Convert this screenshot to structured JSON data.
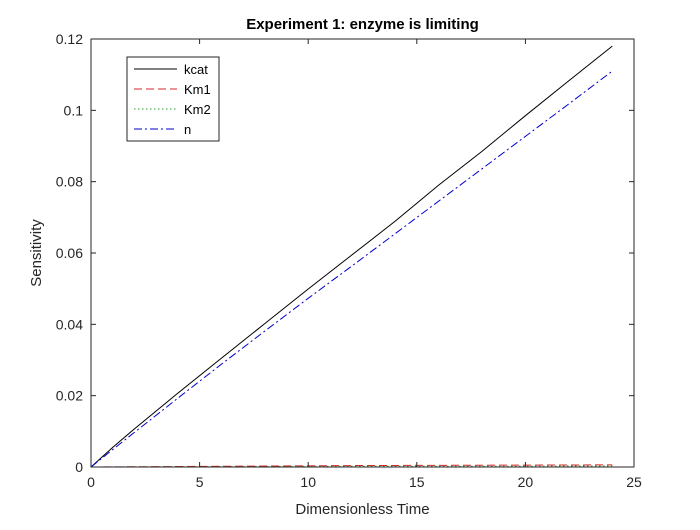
{
  "chart_data": {
    "type": "line",
    "title": "Experiment 1: enzyme is limiting",
    "xlabel": "Dimensionless Time",
    "ylabel": "Sensitivity",
    "xlim": [
      0,
      25
    ],
    "ylim": [
      0,
      0.12
    ],
    "xticks": [
      0,
      5,
      10,
      15,
      20,
      25
    ],
    "yticks": [
      0,
      0.02,
      0.04,
      0.06,
      0.08,
      0.1,
      0.12
    ],
    "xtick_labels": [
      "0",
      "5",
      "10",
      "15",
      "20",
      "25"
    ],
    "ytick_labels": [
      "0",
      "0.02",
      "0.04",
      "0.06",
      "0.08",
      "0.1",
      "0.12"
    ],
    "grid": false,
    "legend_position": "top-left",
    "series": [
      {
        "name": "kcat",
        "color": "#000000",
        "style": "solid",
        "x": [
          0,
          1,
          2,
          4,
          6,
          8,
          10,
          12,
          14,
          16,
          18,
          20,
          22,
          24
        ],
        "y": [
          0,
          0.0055,
          0.0107,
          0.0207,
          0.0305,
          0.0402,
          0.0499,
          0.0594,
          0.0689,
          0.079,
          0.0885,
          0.0985,
          0.1083,
          0.118
        ]
      },
      {
        "name": "Km1",
        "color": "#d62728",
        "style": "dashed",
        "x": [
          0,
          6,
          12,
          18,
          24
        ],
        "y": [
          0,
          0.0002,
          0.0004,
          0.0005,
          0.0006
        ]
      },
      {
        "name": "Km2",
        "color": "#2ca02c",
        "style": "dotted",
        "x": [
          0,
          6,
          12,
          18,
          24
        ],
        "y": [
          0,
          0.0001,
          0.0002,
          0.0002,
          0.0003
        ]
      },
      {
        "name": "n",
        "color": "#0000cc",
        "style": "dashdot",
        "x": [
          0,
          1,
          2,
          4,
          6,
          8,
          10,
          12,
          14,
          16,
          18,
          20,
          22,
          24
        ],
        "y": [
          0,
          0.0049,
          0.0097,
          0.0193,
          0.0288,
          0.0381,
          0.0473,
          0.0563,
          0.0654,
          0.0745,
          0.0836,
          0.0927,
          0.1018,
          0.111
        ]
      }
    ]
  }
}
